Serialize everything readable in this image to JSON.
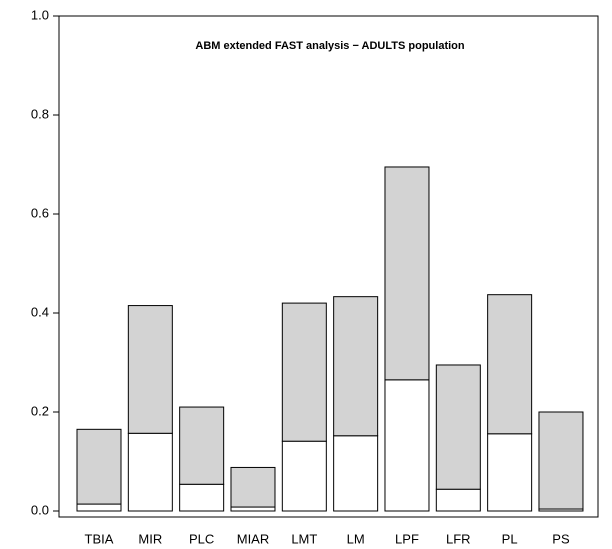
{
  "chart_data": {
    "type": "stacked_bar",
    "title": "ABM extended FAST analysis −  ADULTS  population",
    "categories": [
      "TBIA",
      "MIR",
      "PLC",
      "MIAR",
      "LMT",
      "LM",
      "LPF",
      "LFR",
      "PL",
      "PS"
    ],
    "series": [
      {
        "color": "#ffffff",
        "values": [
          0.014,
          0.157,
          0.054,
          0.008,
          0.141,
          0.152,
          0.265,
          0.044,
          0.156,
          0.004
        ]
      },
      {
        "color": "#d3d3d3",
        "values": [
          0.151,
          0.258,
          0.156,
          0.08,
          0.279,
          0.281,
          0.43,
          0.251,
          0.281,
          0.196
        ]
      }
    ],
    "ylim": [
      0,
      1
    ],
    "yticks": [
      {
        "value": 0,
        "label": "0.0"
      },
      0.2,
      0.4,
      0.6,
      0.8,
      {
        "value": 1,
        "label": "1.0"
      }
    ],
    "grid": false
  }
}
